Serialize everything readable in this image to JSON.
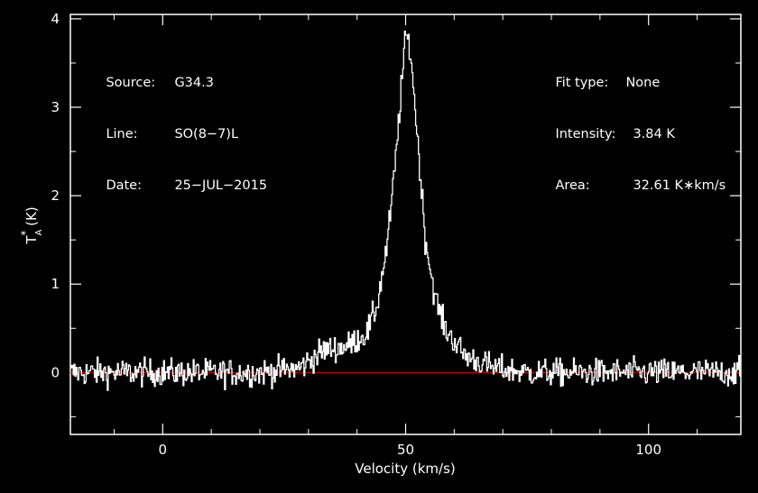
{
  "chart_data": {
    "type": "line",
    "header_left": [
      {
        "label": "Source:",
        "value": "G34.3"
      },
      {
        "label": "Line:",
        "value": "SO(8−7)L"
      },
      {
        "label": "Date:",
        "value": "25−JUL−2015"
      }
    ],
    "header_right": [
      {
        "label": "Fit type:",
        "value": "None"
      },
      {
        "label": "Intensity:",
        "value": "3.84 K"
      },
      {
        "label": "Area:",
        "value": "32.61 K∗km/s"
      }
    ],
    "xlabel": "Velocity (km/s)",
    "ylabel": "T*A (K)",
    "xlim": [
      -19,
      119
    ],
    "ylim": [
      -0.7,
      4.05
    ],
    "xticks": [
      0,
      50,
      100
    ],
    "yticks": [
      0,
      1,
      2,
      3,
      4
    ],
    "baseline": 0,
    "series": [
      {
        "line_color": "#ffffff",
        "baseline_color": "#cc0000",
        "noise_rms": 0.11,
        "x": [
          -19,
          20,
          28,
          33,
          38,
          42,
          44,
          46,
          47,
          48,
          49,
          50,
          51,
          52,
          53,
          54,
          56,
          58,
          62,
          68,
          75,
          119
        ],
        "y": [
          0,
          0,
          0.05,
          0.25,
          0.3,
          0.45,
          0.75,
          1.4,
          1.9,
          2.5,
          3.2,
          3.84,
          3.6,
          2.9,
          2.2,
          1.5,
          0.85,
          0.5,
          0.2,
          0.05,
          0,
          0
        ]
      }
    ]
  }
}
